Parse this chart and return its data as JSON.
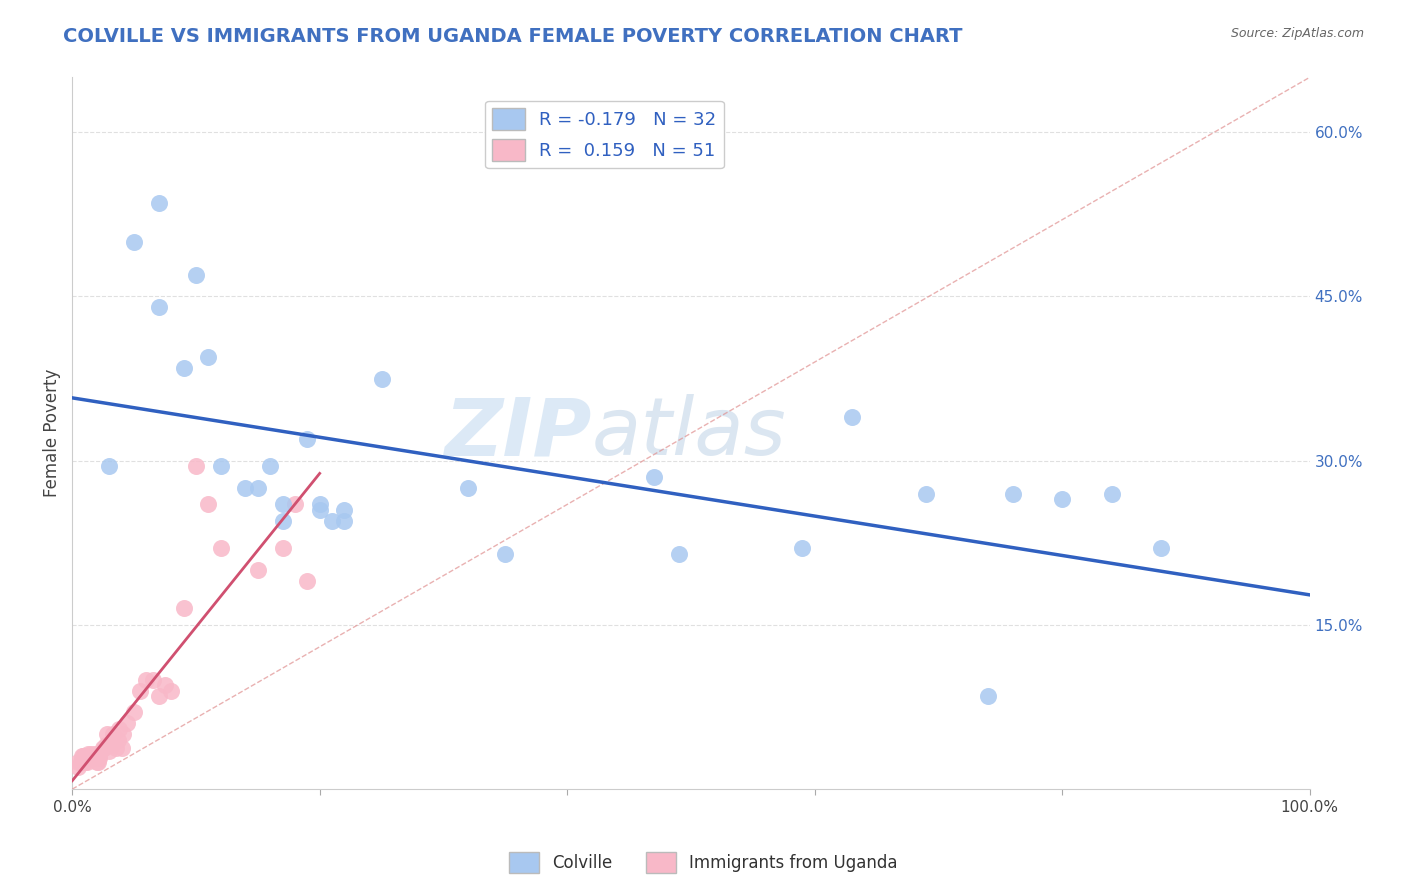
{
  "title": "COLVILLE VS IMMIGRANTS FROM UGANDA FEMALE POVERTY CORRELATION CHART",
  "source": "Source: ZipAtlas.com",
  "ylabel": "Female Poverty",
  "xlabel": "",
  "xlim": [
    0,
    1.0
  ],
  "ylim": [
    0,
    0.65
  ],
  "xticks": [
    0.0,
    0.2,
    0.4,
    0.6,
    0.8,
    1.0
  ],
  "xticklabels": [
    "0.0%",
    "",
    "",
    "",
    "",
    "100.0%"
  ],
  "yticks_right": [
    0.15,
    0.3,
    0.45,
    0.6
  ],
  "yticklabels_right": [
    "15.0%",
    "30.0%",
    "45.0%",
    "60.0%"
  ],
  "blue_color": "#A8C8F0",
  "pink_color": "#F8B8C8",
  "blue_line_color": "#3060C0",
  "pink_line_color": "#D05070",
  "diag_line_color": "#E09090",
  "legend_R1": "-0.179",
  "legend_N1": "32",
  "legend_R2": "0.159",
  "legend_N2": "51",
  "blue_x": [
    0.03,
    0.05,
    0.07,
    0.07,
    0.09,
    0.1,
    0.11,
    0.12,
    0.14,
    0.15,
    0.16,
    0.17,
    0.17,
    0.19,
    0.2,
    0.2,
    0.21,
    0.22,
    0.22,
    0.25,
    0.32,
    0.35,
    0.47,
    0.49,
    0.59,
    0.63,
    0.69,
    0.74,
    0.76,
    0.8,
    0.84,
    0.88
  ],
  "blue_y": [
    0.295,
    0.5,
    0.44,
    0.535,
    0.385,
    0.47,
    0.395,
    0.295,
    0.275,
    0.275,
    0.295,
    0.245,
    0.26,
    0.32,
    0.255,
    0.26,
    0.245,
    0.255,
    0.245,
    0.375,
    0.275,
    0.215,
    0.285,
    0.215,
    0.22,
    0.34,
    0.27,
    0.085,
    0.27,
    0.265,
    0.27,
    0.22
  ],
  "pink_x": [
    0.005,
    0.005,
    0.007,
    0.008,
    0.009,
    0.01,
    0.01,
    0.012,
    0.012,
    0.013,
    0.013,
    0.015,
    0.015,
    0.016,
    0.017,
    0.018,
    0.018,
    0.019,
    0.02,
    0.02,
    0.021,
    0.022,
    0.022,
    0.025,
    0.026,
    0.027,
    0.028,
    0.03,
    0.032,
    0.033,
    0.035,
    0.037,
    0.038,
    0.04,
    0.041,
    0.044,
    0.05,
    0.055,
    0.06,
    0.065,
    0.07,
    0.075,
    0.08,
    0.09,
    0.1,
    0.11,
    0.12,
    0.15,
    0.17,
    0.18,
    0.19
  ],
  "pink_y": [
    0.02,
    0.025,
    0.025,
    0.03,
    0.03,
    0.025,
    0.03,
    0.025,
    0.028,
    0.028,
    0.032,
    0.028,
    0.032,
    0.028,
    0.028,
    0.03,
    0.032,
    0.028,
    0.025,
    0.03,
    0.025,
    0.028,
    0.03,
    0.038,
    0.038,
    0.04,
    0.05,
    0.035,
    0.04,
    0.05,
    0.038,
    0.045,
    0.055,
    0.038,
    0.05,
    0.06,
    0.07,
    0.09,
    0.1,
    0.1,
    0.085,
    0.095,
    0.09,
    0.165,
    0.295,
    0.26,
    0.22,
    0.2,
    0.22,
    0.26,
    0.19
  ],
  "watermark_zip": "ZIP",
  "watermark_atlas": "atlas",
  "background_color": "#FFFFFF",
  "grid_color": "#E0E0E0",
  "title_color": "#4070C0",
  "source_color": "#666666"
}
